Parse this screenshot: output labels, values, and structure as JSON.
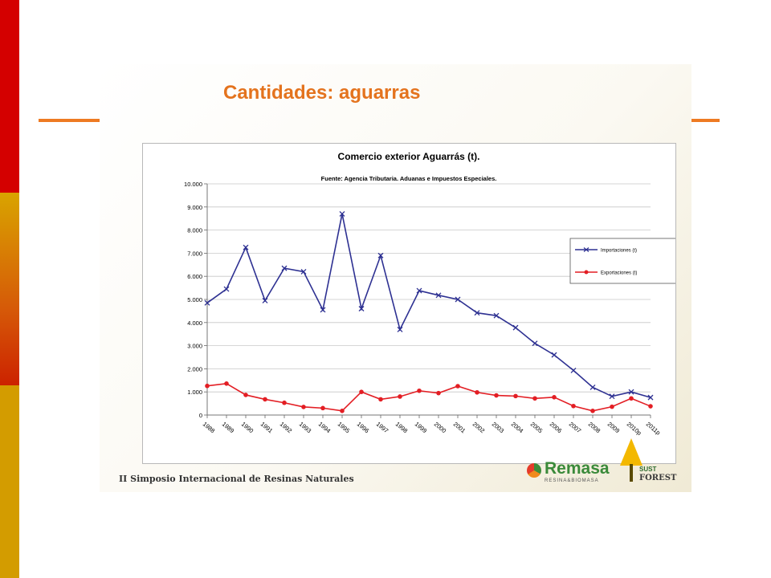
{
  "slide": {
    "title": "Cantidades: aguarras",
    "footer": "II Simposio Internacional de Resinas Naturales"
  },
  "logos": {
    "remasa_name": "Remasa",
    "remasa_sub": "RESINA&BIOMASA",
    "sust_line1": "SUST",
    "sust_line2": "FOREST"
  },
  "colors": {
    "left_bar_top": "#d40000",
    "left_bar_bottom": "#d39c00",
    "accent_orange": "#e4731e",
    "series_importaciones": "#2e3192",
    "series_exportaciones": "#e31e24"
  },
  "chart_data": {
    "type": "line",
    "title": "Comercio exterior Aguarrás (t).",
    "subtitle": "Fuente: Agencia Tributaria. Aduanas e Impuestos Especiales.",
    "xlabel": "",
    "ylabel": "",
    "ylim": [
      0,
      10000
    ],
    "yticks": [
      "0",
      "1.000",
      "2.000",
      "3.000",
      "4.000",
      "5.000",
      "6.000",
      "7.000",
      "8.000",
      "9.000",
      "10.000"
    ],
    "grid": true,
    "legend_position": "right",
    "categories": [
      "1988",
      "1989",
      "1990",
      "1991",
      "1992",
      "1993",
      "1994",
      "1995",
      "1996",
      "1997",
      "1998",
      "1999",
      "2000",
      "2001",
      "2002",
      "2003",
      "2004",
      "2005",
      "2006",
      "2007",
      "2008",
      "2009",
      "2010p",
      "2011p"
    ],
    "series": [
      {
        "name": "Importaciones (t)",
        "color": "#2e3192",
        "marker": "x",
        "values": [
          4850,
          5450,
          7250,
          4950,
          6350,
          6200,
          4550,
          8700,
          4600,
          6900,
          3700,
          5380,
          5180,
          5000,
          4420,
          4300,
          3780,
          3100,
          2600,
          1930,
          1200,
          810,
          1000,
          760
        ]
      },
      {
        "name": "Exportaciones (t)",
        "color": "#e31e24",
        "marker": "circle",
        "values": [
          1260,
          1360,
          870,
          680,
          530,
          350,
          300,
          180,
          1000,
          680,
          800,
          1050,
          950,
          1250,
          980,
          850,
          820,
          720,
          770,
          390,
          180,
          360,
          720,
          380
        ]
      }
    ]
  }
}
